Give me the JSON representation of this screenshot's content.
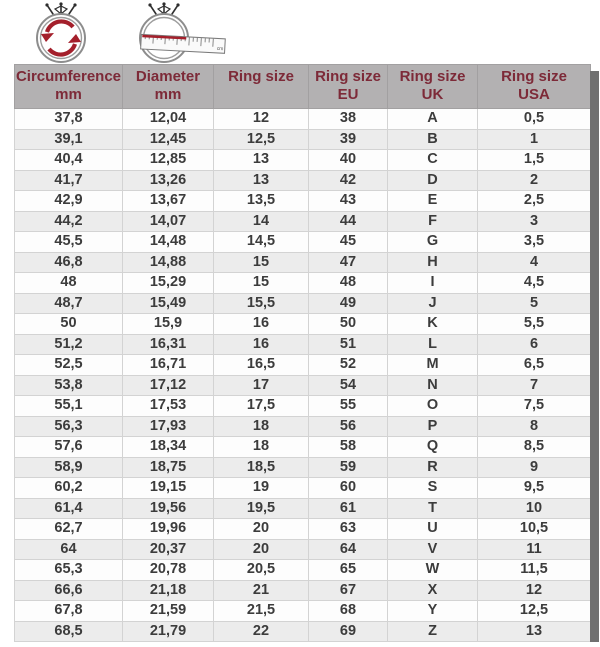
{
  "icons": {
    "circumference_icon": "ring-with-circular-arrows",
    "diameter_icon": "ring-with-ruler",
    "ruler_unit_label": "cm"
  },
  "colors": {
    "header_bg": "#b3b1b2",
    "header_text": "#7d2a38",
    "row_bg": "#fdfdfd",
    "row_alt_bg": "#ececec",
    "body_text": "#3c3c3c",
    "right_band": "#707070",
    "accent_red": "#a41f2b"
  },
  "chart_data": {
    "type": "table",
    "columns": [
      {
        "line1": "Circumference",
        "line2": "mm"
      },
      {
        "line1": "Diameter",
        "line2": "mm"
      },
      {
        "line1": "Ring size",
        "line2": ""
      },
      {
        "line1": "Ring size",
        "line2": "EU"
      },
      {
        "line1": "Ring size",
        "line2": "UK"
      },
      {
        "line1": "Ring size",
        "line2": "USA"
      }
    ],
    "rows": [
      [
        "37,8",
        "12,04",
        "12",
        "38",
        "A",
        "0,5"
      ],
      [
        "39,1",
        "12,45",
        "12,5",
        "39",
        "B",
        "1"
      ],
      [
        "40,4",
        "12,85",
        "13",
        "40",
        "C",
        "1,5"
      ],
      [
        "41,7",
        "13,26",
        "13",
        "42",
        "D",
        "2"
      ],
      [
        "42,9",
        "13,67",
        "13,5",
        "43",
        "E",
        "2,5"
      ],
      [
        "44,2",
        "14,07",
        "14",
        "44",
        "F",
        "3"
      ],
      [
        "45,5",
        "14,48",
        "14,5",
        "45",
        "G",
        "3,5"
      ],
      [
        "46,8",
        "14,88",
        "15",
        "47",
        "H",
        "4"
      ],
      [
        "48",
        "15,29",
        "15",
        "48",
        "I",
        "4,5"
      ],
      [
        "48,7",
        "15,49",
        "15,5",
        "49",
        "J",
        "5"
      ],
      [
        "50",
        "15,9",
        "16",
        "50",
        "K",
        "5,5"
      ],
      [
        "51,2",
        "16,31",
        "16",
        "51",
        "L",
        "6"
      ],
      [
        "52,5",
        "16,71",
        "16,5",
        "52",
        "M",
        "6,5"
      ],
      [
        "53,8",
        "17,12",
        "17",
        "54",
        "N",
        "7"
      ],
      [
        "55,1",
        "17,53",
        "17,5",
        "55",
        "O",
        "7,5"
      ],
      [
        "56,3",
        "17,93",
        "18",
        "56",
        "P",
        "8"
      ],
      [
        "57,6",
        "18,34",
        "18",
        "58",
        "Q",
        "8,5"
      ],
      [
        "58,9",
        "18,75",
        "18,5",
        "59",
        "R",
        "9"
      ],
      [
        "60,2",
        "19,15",
        "19",
        "60",
        "S",
        "9,5"
      ],
      [
        "61,4",
        "19,56",
        "19,5",
        "61",
        "T",
        "10"
      ],
      [
        "62,7",
        "19,96",
        "20",
        "63",
        "U",
        "10,5"
      ],
      [
        "64",
        "20,37",
        "20",
        "64",
        "V",
        "11"
      ],
      [
        "65,3",
        "20,78",
        "20,5",
        "65",
        "W",
        "11,5"
      ],
      [
        "66,6",
        "21,18",
        "21",
        "67",
        "X",
        "12"
      ],
      [
        "67,8",
        "21,59",
        "21,5",
        "68",
        "Y",
        "12,5"
      ],
      [
        "68,5",
        "21,79",
        "22",
        "69",
        "Z",
        "13"
      ]
    ]
  }
}
